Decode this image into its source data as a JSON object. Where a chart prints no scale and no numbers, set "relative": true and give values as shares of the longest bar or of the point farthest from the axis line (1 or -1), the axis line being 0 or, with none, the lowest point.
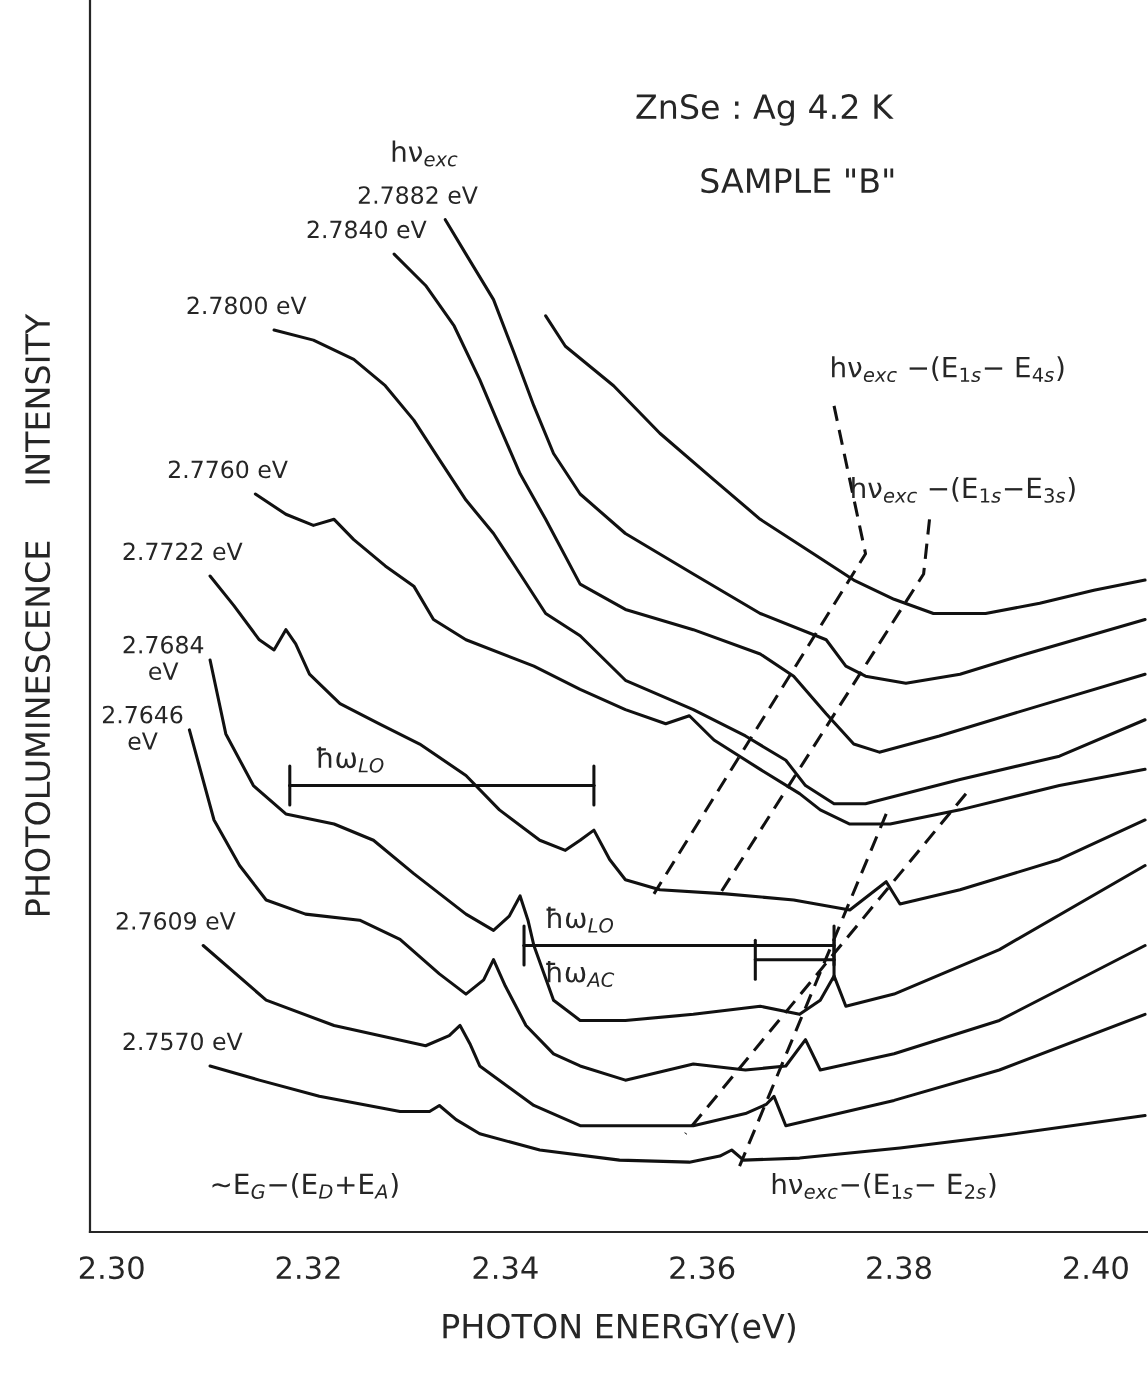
{
  "chart_data": {
    "type": "line",
    "relative": true,
    "title": "ZnSe : Ag 4.2 K",
    "subtitle": "SAMPLE \"B\"",
    "xlabel": "PHOTON ENERGY(eV)",
    "ylabel": "PHOTOLUMINESCENCE     INTENSITY",
    "xlim": [
      2.2978,
      2.4053
    ],
    "xticks": [
      {
        "value": 2.3,
        "label": "2.30"
      },
      {
        "value": 2.32,
        "label": "2.32"
      },
      {
        "value": 2.34,
        "label": "2.34"
      },
      {
        "value": 2.36,
        "label": "2.36"
      },
      {
        "value": 2.38,
        "label": "2.38"
      },
      {
        "value": 2.4,
        "label": "2.40"
      }
    ],
    "grid": false,
    "legend": false,
    "marker": "none",
    "line_style": "solid",
    "series": [
      {
        "color": "#111111",
        "x": [
          2.3441,
          2.3461,
          2.351,
          2.3557,
          2.3612,
          2.3659,
          2.3713,
          2.3754,
          2.3795,
          2.3835,
          2.3888,
          2.3943,
          2.3998,
          2.405
        ],
        "values": [
          0.905,
          0.875,
          0.836,
          0.789,
          0.743,
          0.704,
          0.67,
          0.644,
          0.625,
          0.611,
          0.611,
          0.621,
          0.634,
          0.644
        ]
      },
      {
        "name": "2.7882 eV",
        "color": "#111111",
        "x": [
          2.3339,
          2.336,
          2.3388,
          2.3409,
          2.3429,
          2.3449,
          2.3476,
          2.3522,
          2.3591,
          2.3659,
          2.3726,
          2.3746,
          2.3766,
          2.3807,
          2.3862,
          2.3929,
          2.405
        ],
        "values": [
          1.0,
          0.966,
          0.921,
          0.868,
          0.816,
          0.769,
          0.729,
          0.69,
          0.65,
          0.611,
          0.585,
          0.559,
          0.549,
          0.542,
          0.551,
          0.571,
          0.605
        ]
      },
      {
        "name": "2.7840 eV",
        "color": "#111111",
        "x": [
          2.3287,
          2.3319,
          2.3348,
          2.3374,
          2.3394,
          2.3415,
          2.3441,
          2.3476,
          2.3522,
          2.3591,
          2.3659,
          2.3693,
          2.3726,
          2.3754,
          2.378,
          2.3841,
          2.3943,
          2.405
        ],
        "values": [
          0.966,
          0.935,
          0.895,
          0.842,
          0.796,
          0.749,
          0.704,
          0.64,
          0.615,
          0.595,
          0.571,
          0.549,
          0.512,
          0.482,
          0.474,
          0.49,
          0.52,
          0.551
        ]
      },
      {
        "name": "2.7800 eV",
        "color": "#111111",
        "x": [
          2.3165,
          2.3205,
          2.3246,
          2.3278,
          2.3307,
          2.3333,
          2.336,
          2.3388,
          2.3415,
          2.3441,
          2.3476,
          2.3522,
          2.3591,
          2.3644,
          2.3685,
          2.3705,
          2.3734,
          2.3766,
          2.3862,
          2.3963,
          2.405
        ],
        "values": [
          0.891,
          0.881,
          0.862,
          0.836,
          0.802,
          0.763,
          0.723,
          0.69,
          0.65,
          0.611,
          0.589,
          0.545,
          0.516,
          0.49,
          0.466,
          0.441,
          0.423,
          0.423,
          0.447,
          0.47,
          0.506
        ]
      },
      {
        "name": "2.7760 eV",
        "color": "#111111",
        "x": [
          2.3146,
          2.3177,
          2.3205,
          2.3226,
          2.3246,
          2.3278,
          2.3307,
          2.3327,
          2.336,
          2.3429,
          2.3476,
          2.3522,
          2.3563,
          2.3587,
          2.3612,
          2.3659,
          2.3699,
          2.372,
          2.375,
          2.3791,
          2.3862,
          2.3963,
          2.405
        ],
        "values": [
          0.729,
          0.709,
          0.698,
          0.704,
          0.684,
          0.658,
          0.638,
          0.605,
          0.585,
          0.559,
          0.536,
          0.516,
          0.502,
          0.51,
          0.486,
          0.457,
          0.433,
          0.417,
          0.403,
          0.403,
          0.417,
          0.441,
          0.457
        ]
      },
      {
        "name": "2.7722 eV",
        "color": "#111111",
        "x": [
          2.31,
          2.3124,
          2.315,
          2.3165,
          2.3177,
          2.3187,
          2.3201,
          2.3232,
          2.3272,
          2.3313,
          2.336,
          2.3394,
          2.3435,
          2.3461,
          2.3476,
          2.349,
          2.3506,
          2.3522,
          2.3557,
          2.3624,
          2.3693,
          2.375,
          2.3787,
          2.3801,
          2.3862,
          2.3963,
          2.405
        ],
        "values": [
          0.648,
          0.619,
          0.585,
          0.575,
          0.595,
          0.581,
          0.551,
          0.522,
          0.502,
          0.482,
          0.451,
          0.417,
          0.387,
          0.377,
          0.387,
          0.397,
          0.368,
          0.348,
          0.338,
          0.334,
          0.328,
          0.318,
          0.346,
          0.324,
          0.338,
          0.368,
          0.407
        ]
      },
      {
        "name": "2.7684\neV",
        "color": "#111111",
        "x": [
          2.31,
          2.3116,
          2.3144,
          2.3177,
          2.3226,
          2.3266,
          2.3307,
          2.336,
          2.3388,
          2.3404,
          2.3415,
          2.3423,
          2.3429,
          2.3449,
          2.3476,
          2.3522,
          2.3591,
          2.3659,
          2.3699,
          2.372,
          2.3734,
          2.3746,
          2.3795,
          2.3902,
          2.405
        ],
        "values": [
          0.565,
          0.492,
          0.441,
          0.413,
          0.403,
          0.387,
          0.354,
          0.314,
          0.298,
          0.312,
          0.332,
          0.308,
          0.283,
          0.229,
          0.209,
          0.209,
          0.215,
          0.223,
          0.215,
          0.229,
          0.253,
          0.223,
          0.235,
          0.279,
          0.362
        ]
      },
      {
        "name": "2.7646\neV",
        "color": "#111111",
        "x": [
          2.3079,
          2.3104,
          2.313,
          2.3157,
          2.3197,
          2.3252,
          2.3293,
          2.3333,
          2.336,
          2.3378,
          2.3388,
          2.34,
          2.3421,
          2.3449,
          2.3476,
          2.3522,
          2.3591,
          2.3644,
          2.3685,
          2.3705,
          2.372,
          2.3795,
          2.3902,
          2.405
        ],
        "values": [
          0.496,
          0.407,
          0.362,
          0.328,
          0.314,
          0.308,
          0.289,
          0.255,
          0.235,
          0.249,
          0.269,
          0.243,
          0.204,
          0.176,
          0.164,
          0.15,
          0.166,
          0.16,
          0.164,
          0.19,
          0.16,
          0.176,
          0.209,
          0.283
        ]
      },
      {
        "name": "2.7609 eV",
        "color": "#111111",
        "x": [
          2.3093,
          2.3157,
          2.3226,
          2.3319,
          2.3343,
          2.3354,
          2.3364,
          2.3374,
          2.3429,
          2.3476,
          2.3591,
          2.3644,
          2.3665,
          2.3673,
          2.3685,
          2.3795,
          2.3902,
          2.405
        ],
        "values": [
          0.283,
          0.229,
          0.204,
          0.184,
          0.194,
          0.204,
          0.186,
          0.164,
          0.125,
          0.105,
          0.105,
          0.117,
          0.126,
          0.134,
          0.105,
          0.13,
          0.16,
          0.215
        ]
      },
      {
        "name": "2.7570 eV",
        "color": "#111111",
        "x": [
          2.31,
          2.315,
          2.3211,
          2.3293,
          2.3323,
          2.3333,
          2.335,
          2.3374,
          2.3435,
          2.3516,
          2.3587,
          2.3618,
          2.363,
          2.3642,
          2.3699,
          2.3801,
          2.3902,
          2.405
        ],
        "values": [
          0.164,
          0.15,
          0.134,
          0.119,
          0.119,
          0.125,
          0.111,
          0.097,
          0.081,
          0.071,
          0.069,
          0.075,
          0.081,
          0.071,
          0.073,
          0.083,
          0.095,
          0.115
        ]
      },
      {
        "color": "#111111",
        "line_style": "dashed",
        "x": [
          2.3734,
          2.3766,
          2.3551
        ],
        "values": [
          0.816,
          0.67,
          0.334
        ]
      },
      {
        "color": "#111111",
        "line_style": "dashed",
        "x": [
          2.3831,
          2.3825,
          2.3618
        ],
        "values": [
          0.704,
          0.65,
          0.334
        ]
      },
      {
        "color": "#111111",
        "line_style": "dashed",
        "x": [
          2.3868,
          2.3583
        ],
        "values": [
          0.433,
          0.097
        ]
      },
      {
        "color": "#111111",
        "line_style": "dashed",
        "x": [
          2.3787,
          2.3638
        ],
        "values": [
          0.413,
          0.065
        ]
      },
      {
        "color": "#111111",
        "x": [
          2.3181,
          2.349
        ],
        "values": [
          0.441,
          0.441
        ]
      },
      {
        "color": "#111111",
        "x": [
          2.3419,
          2.3734
        ],
        "values": [
          0.283,
          0.283
        ]
      },
      {
        "color": "#111111",
        "x": [
          2.3654,
          2.3734
        ],
        "values": [
          0.269,
          0.269
        ]
      }
    ],
    "annotations": [
      "hν$_{exc}$",
      "ħω$_{LO}$",
      "ħω$_{LO}$",
      "ħω$_{AC}$",
      "hν$_{exc}$ −(E$_{1s}$− E$_{4s}$)",
      "hν$_{exc}$ −(E$_{1s}$−E$_{3s}$)",
      "~E$_{G}$−(E$_{D}$+E$_{A}$)",
      "hν$_{exc}$−(E$_{1s}$− E$_{2s}$)"
    ]
  }
}
